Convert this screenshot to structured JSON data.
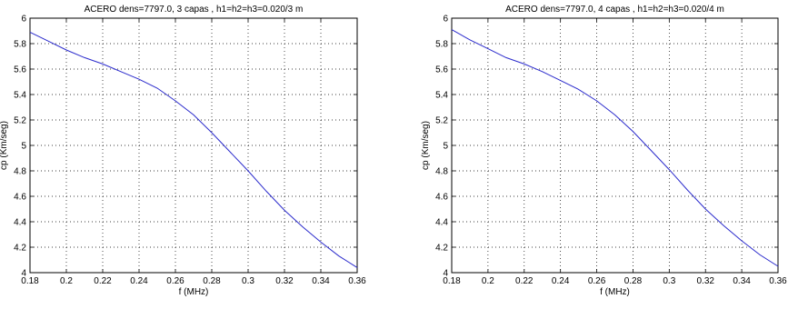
{
  "chart_data": [
    {
      "type": "line",
      "title": "ACERO  dens=7797.0, 3 capas , h1=h2=h3=0.020/3 m",
      "xlabel": "f  (MHz)",
      "ylabel": "cp  (Km/seg)",
      "xlim": [
        0.18,
        0.36
      ],
      "ylim": [
        4,
        6
      ],
      "xticks": [
        "0.18",
        "0.2",
        "0.22",
        "0.24",
        "0.26",
        "0.28",
        "0.3",
        "0.32",
        "0.34",
        "0.36"
      ],
      "yticks": [
        "4",
        "4.2",
        "4.4",
        "4.6",
        "4.8",
        "5",
        "5.2",
        "5.4",
        "5.6",
        "5.8",
        "6"
      ],
      "grid": true,
      "line_color": "#2b2bcc",
      "x": [
        0.18,
        0.19,
        0.2,
        0.21,
        0.22,
        0.23,
        0.24,
        0.25,
        0.26,
        0.27,
        0.28,
        0.29,
        0.3,
        0.31,
        0.32,
        0.33,
        0.34,
        0.35,
        0.36
      ],
      "y": [
        5.89,
        5.82,
        5.75,
        5.69,
        5.64,
        5.58,
        5.52,
        5.45,
        5.35,
        5.24,
        5.1,
        4.95,
        4.8,
        4.64,
        4.49,
        4.36,
        4.24,
        4.13,
        4.04
      ]
    },
    {
      "type": "line",
      "title": "ACERO  dens=7797.0, 4 capas , h1=h2=h3=0.020/4 m",
      "xlabel": "f  (MHz)",
      "ylabel": "cp  (Km/seg)",
      "xlim": [
        0.18,
        0.36
      ],
      "ylim": [
        4,
        6
      ],
      "xticks": [
        "0.18",
        "0.2",
        "0.22",
        "0.24",
        "0.26",
        "0.28",
        "0.3",
        "0.32",
        "0.34",
        "0.36"
      ],
      "yticks": [
        "4",
        "4.2",
        "4.4",
        "4.6",
        "4.8",
        "5",
        "5.2",
        "5.4",
        "5.6",
        "5.8",
        "6"
      ],
      "grid": true,
      "line_color": "#2b2bcc",
      "x": [
        0.18,
        0.19,
        0.2,
        0.21,
        0.22,
        0.23,
        0.24,
        0.25,
        0.26,
        0.27,
        0.28,
        0.29,
        0.3,
        0.31,
        0.32,
        0.33,
        0.34,
        0.35,
        0.36
      ],
      "y": [
        5.91,
        5.83,
        5.76,
        5.69,
        5.64,
        5.58,
        5.51,
        5.44,
        5.35,
        5.24,
        5.11,
        4.96,
        4.81,
        4.65,
        4.5,
        4.37,
        4.25,
        4.14,
        4.05
      ]
    }
  ]
}
